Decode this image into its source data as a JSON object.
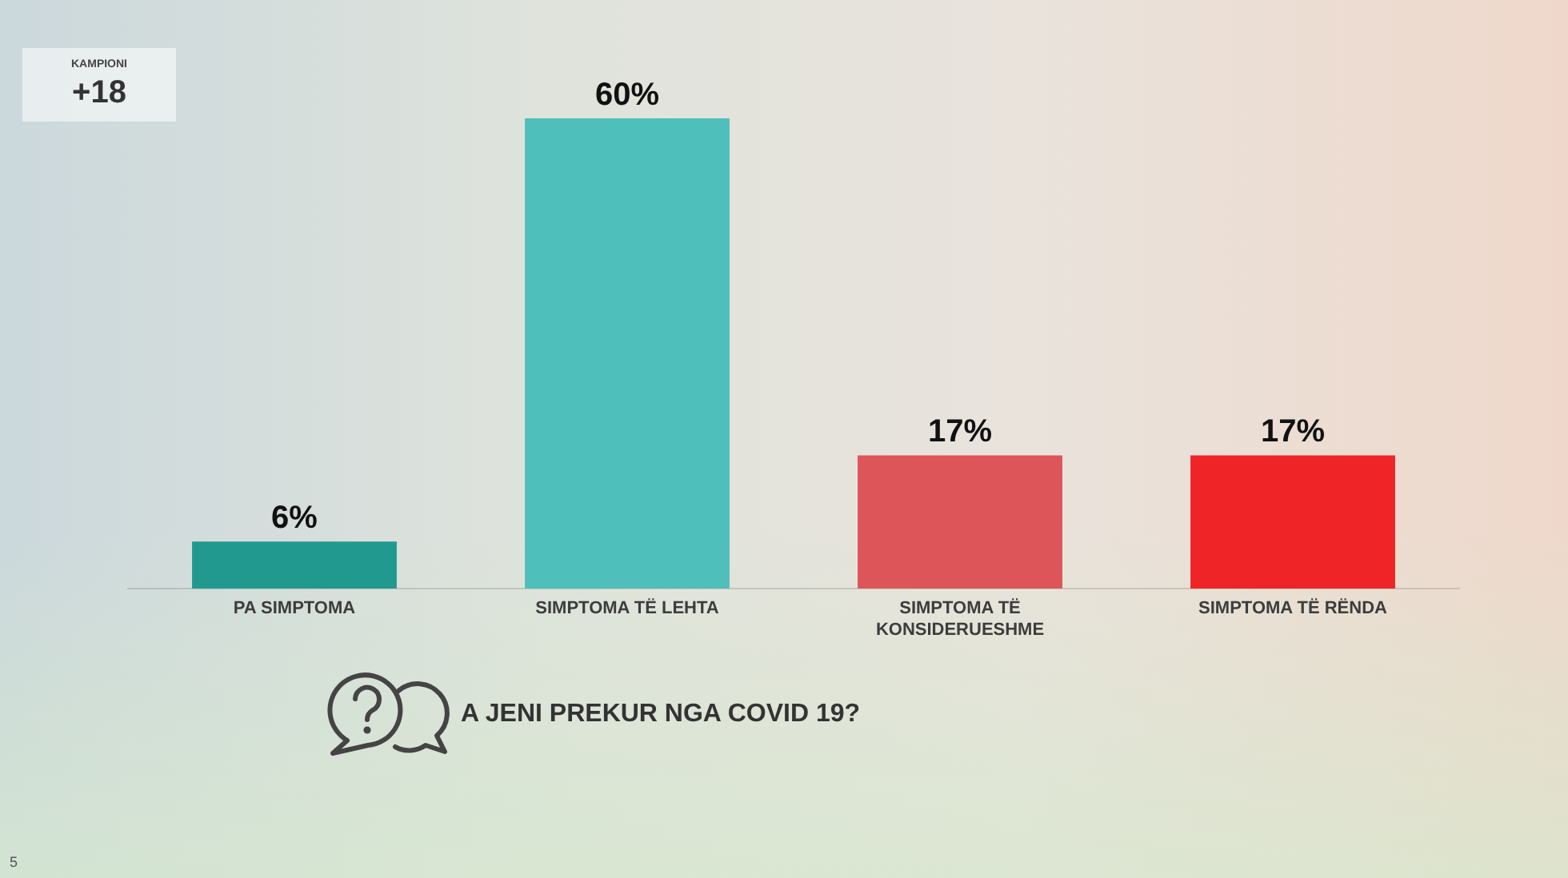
{
  "chart_data": {
    "type": "bar",
    "title": "A JENI PREKUR NGA COVID 19?",
    "categories": [
      "PA SIMPTOMA",
      "SIMPTOMA TË LEHTA",
      "SIMPTOMA TË KONSIDERUESHME",
      "SIMPTOMA TË RËNDA"
    ],
    "values": [
      6,
      60,
      17,
      17
    ],
    "colors": [
      "#22998f",
      "#4ebfba",
      "#dd5459",
      "#ee2426"
    ],
    "value_labels": [
      "6%",
      "60%",
      "17%",
      "17%"
    ],
    "annotations": [
      "KAMPIONI",
      "+18",
      "5"
    ]
  }
}
